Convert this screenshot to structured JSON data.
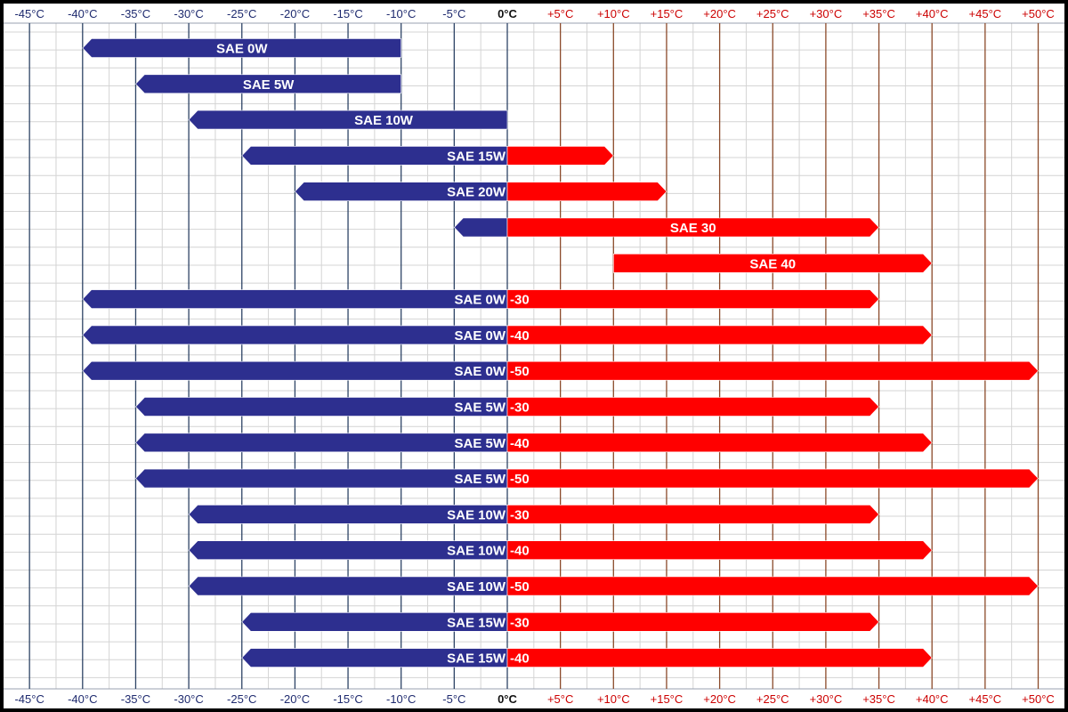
{
  "chart_data": {
    "type": "bar",
    "title": "",
    "xlabel": "",
    "ylabel": "",
    "xlim": [
      -47.5,
      51
    ],
    "x_ticks": [
      -45,
      -40,
      -35,
      -30,
      -25,
      -20,
      -15,
      -10,
      -5,
      0,
      5,
      10,
      15,
      20,
      25,
      30,
      35,
      40,
      45,
      50
    ],
    "x_tick_labels": [
      "-45°C",
      "-40°C",
      "-35°C",
      "-30°C",
      "-25°C",
      "-20°C",
      "-15°C",
      "-10°C",
      "-5°C",
      "0°C",
      "+5°C",
      "+10°C",
      "+15°C",
      "+20°C",
      "+25°C",
      "+30°C",
      "+35°C",
      "+40°C",
      "+45°C",
      "+50°C"
    ],
    "grid": true,
    "colors": {
      "cold": "#2d2f8f",
      "hot": "#ff0000",
      "cold_tick": "#1e2a6e",
      "hot_tick": "#cc0000",
      "cold_gridline": "#2e4466",
      "hot_gridline": "#8b4a2a",
      "minor_grid": "#d4d4d4"
    },
    "series": [
      {
        "label": "SAE 0W",
        "min_temp": -40,
        "max_temp": -10
      },
      {
        "label": "SAE 5W",
        "min_temp": -35,
        "max_temp": -10
      },
      {
        "label": "SAE 10W",
        "min_temp": -30,
        "max_temp": 0
      },
      {
        "label": "SAE 15W",
        "min_temp": -25,
        "max_temp": 10
      },
      {
        "label": "SAE 20W",
        "min_temp": -20,
        "max_temp": 15
      },
      {
        "label": "SAE 30",
        "min_temp": -5,
        "max_temp": 35
      },
      {
        "label": "SAE 40",
        "min_temp": 10,
        "max_temp": 40
      },
      {
        "label": "SAE 0W",
        "label_hot": "-30",
        "min_temp": -40,
        "max_temp": 35
      },
      {
        "label": "SAE 0W",
        "label_hot": "-40",
        "min_temp": -40,
        "max_temp": 40
      },
      {
        "label": "SAE 0W",
        "label_hot": "-50",
        "min_temp": -40,
        "max_temp": 50
      },
      {
        "label": "SAE 5W",
        "label_hot": "-30",
        "min_temp": -35,
        "max_temp": 35
      },
      {
        "label": "SAE 5W",
        "label_hot": "-40",
        "min_temp": -35,
        "max_temp": 40
      },
      {
        "label": "SAE 5W",
        "label_hot": "-50",
        "min_temp": -35,
        "max_temp": 50
      },
      {
        "label": "SAE 10W",
        "label_hot": "-30",
        "min_temp": -30,
        "max_temp": 35
      },
      {
        "label": "SAE 10W",
        "label_hot": "-40",
        "min_temp": -30,
        "max_temp": 40
      },
      {
        "label": "SAE 10W",
        "label_hot": "-50",
        "min_temp": -30,
        "max_temp": 50
      },
      {
        "label": "SAE 15W",
        "label_hot": "-30",
        "min_temp": -25,
        "max_temp": 35
      },
      {
        "label": "SAE 15W",
        "label_hot": "-40",
        "min_temp": -25,
        "max_temp": 40
      }
    ]
  }
}
